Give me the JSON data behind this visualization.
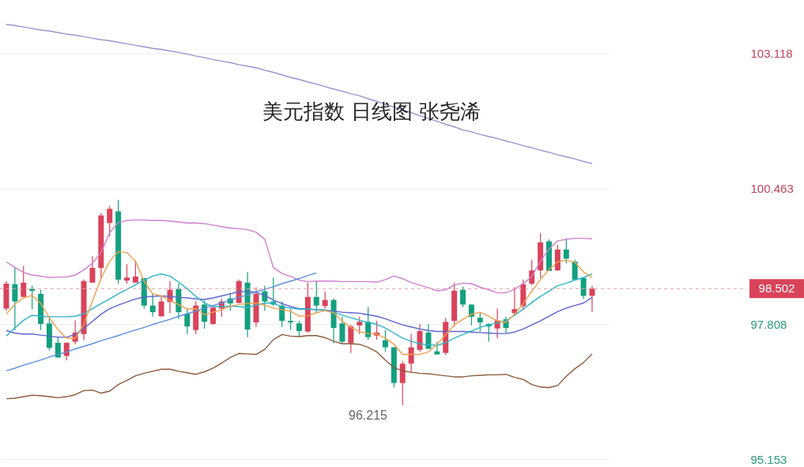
{
  "chart_data": {
    "type": "candlestick",
    "title": "美元指数 日线图 张尧浠",
    "categories": [
      null,
      null,
      null,
      null,
      null,
      null,
      null,
      null,
      null,
      null,
      null,
      null,
      null,
      null,
      null,
      null,
      null,
      null,
      null,
      null,
      null,
      null,
      null,
      null,
      null,
      null,
      null,
      null,
      null,
      null,
      null,
      null,
      null,
      null,
      null,
      null,
      null,
      null,
      null,
      null,
      null,
      null,
      null,
      null,
      null,
      null,
      null,
      null,
      null,
      null,
      null,
      null,
      null,
      null,
      null,
      null,
      null,
      null,
      null,
      null,
      null,
      null,
      null,
      null,
      null,
      null,
      null,
      null,
      null
    ],
    "ohlc": [
      [
        98.11,
        98.65,
        98.07,
        98.6
      ],
      [
        98.59,
        98.91,
        97.69,
        98.25
      ],
      [
        98.34,
        98.95,
        98.34,
        98.62
      ],
      [
        98.5,
        98.56,
        98.1,
        98.46
      ],
      [
        98.4,
        98.48,
        97.69,
        97.81
      ],
      [
        97.82,
        97.96,
        97.29,
        97.34
      ],
      [
        97.44,
        97.56,
        97.15,
        97.15
      ],
      [
        97.18,
        97.44,
        97.09,
        97.44
      ],
      [
        97.46,
        97.88,
        97.41,
        97.64
      ],
      [
        97.61,
        98.68,
        97.49,
        98.65
      ],
      [
        98.62,
        99.14,
        98.62,
        98.91
      ],
      [
        98.91,
        99.99,
        98.71,
        99.94
      ],
      [
        99.79,
        100.13,
        99.53,
        100.07
      ],
      [
        100.02,
        100.25,
        98.6,
        98.68
      ],
      [
        98.66,
        98.98,
        98.6,
        98.72
      ],
      [
        98.62,
        99.06,
        98.62,
        98.74
      ],
      [
        98.71,
        98.71,
        98.11,
        98.17
      ],
      [
        98.17,
        98.4,
        97.95,
        98.04
      ],
      [
        97.96,
        98.34,
        97.95,
        98.25
      ],
      [
        98.24,
        98.65,
        98.02,
        98.48
      ],
      [
        98.5,
        98.6,
        97.9,
        98.04
      ],
      [
        98.01,
        98.11,
        97.61,
        97.76
      ],
      [
        97.69,
        98.25,
        97.61,
        98.17
      ],
      [
        98.19,
        98.27,
        97.72,
        97.85
      ],
      [
        97.81,
        98.17,
        97.79,
        98.13
      ],
      [
        98.11,
        98.31,
        97.95,
        98.25
      ],
      [
        98.31,
        98.42,
        98.07,
        98.21
      ],
      [
        98.22,
        98.68,
        98.22,
        98.65
      ],
      [
        98.62,
        98.83,
        97.55,
        97.7
      ],
      [
        97.84,
        98.53,
        97.75,
        98.4
      ],
      [
        98.45,
        98.56,
        98.07,
        98.25
      ],
      [
        98.25,
        98.72,
        98.17,
        98.19
      ],
      [
        98.17,
        98.25,
        97.75,
        97.87
      ],
      [
        97.87,
        98.11,
        97.69,
        97.84
      ],
      [
        97.82,
        97.87,
        97.56,
        97.67
      ],
      [
        97.66,
        98.62,
        97.64,
        98.34
      ],
      [
        98.34,
        98.65,
        98.04,
        98.17
      ],
      [
        98.16,
        98.45,
        98.11,
        98.28
      ],
      [
        98.28,
        98.31,
        97.43,
        97.73
      ],
      [
        97.82,
        97.95,
        97.43,
        97.46
      ],
      [
        97.43,
        97.79,
        97.24,
        97.76
      ],
      [
        97.78,
        97.95,
        97.61,
        97.85
      ],
      [
        97.85,
        98.14,
        97.5,
        97.55
      ],
      [
        97.58,
        97.87,
        97.5,
        97.64
      ],
      [
        97.49,
        97.69,
        97.26,
        97.35
      ],
      [
        97.35,
        97.35,
        96.56,
        96.65
      ],
      [
        96.65,
        97.08,
        96.215,
        97.03
      ],
      [
        97.03,
        97.61,
        96.85,
        97.35
      ],
      [
        97.3,
        97.81,
        97.26,
        97.67
      ],
      [
        97.64,
        97.81,
        97.32,
        97.32
      ],
      [
        97.27,
        97.46,
        97.21,
        97.21
      ],
      [
        97.24,
        97.93,
        97.2,
        97.85
      ],
      [
        97.87,
        98.62,
        97.76,
        98.46
      ],
      [
        98.48,
        98.54,
        98.14,
        98.19
      ],
      [
        98.19,
        98.19,
        97.78,
        97.95
      ],
      [
        97.93,
        98.02,
        97.66,
        97.84
      ],
      [
        97.81,
        97.82,
        97.46,
        97.76
      ],
      [
        97.72,
        98.11,
        97.53,
        97.88
      ],
      [
        97.9,
        97.95,
        97.63,
        97.73
      ],
      [
        98.02,
        98.53,
        97.99,
        98.1
      ],
      [
        98.16,
        98.68,
        98.08,
        98.59
      ],
      [
        98.6,
        99.07,
        98.57,
        98.86
      ],
      [
        98.86,
        99.59,
        98.71,
        99.41
      ],
      [
        99.43,
        99.47,
        98.85,
        98.85
      ],
      [
        98.86,
        99.36,
        98.85,
        99.27
      ],
      [
        99.27,
        99.49,
        99.0,
        99.09
      ],
      [
        99.03,
        99.07,
        98.68,
        98.68
      ],
      [
        98.71,
        98.71,
        98.3,
        98.36
      ],
      [
        98.36,
        98.56,
        98.05,
        98.502
      ]
    ],
    "colors": [
      "#d9435a",
      "#13a07f",
      "#d9435a",
      "#13a07f",
      "#13a07f",
      "#13a07f",
      "#13a07f",
      "#d9435a",
      "#d9435a",
      "#d9435a",
      "#d9435a",
      "#d9435a",
      "#d9435a",
      "#13a07f",
      "#d9435a",
      "#d9435a",
      "#13a07f",
      "#13a07f",
      "#d9435a",
      "#d9435a",
      "#13a07f",
      "#13a07f",
      "#d9435a",
      "#13a07f",
      "#d9435a",
      "#d9435a",
      "#13a07f",
      "#d9435a",
      "#13a07f",
      "#d9435a",
      "#13a07f",
      "#13a07f",
      "#13a07f",
      "#13a07f",
      "#13a07f",
      "#d9435a",
      "#13a07f",
      "#d9435a",
      "#13a07f",
      "#13a07f",
      "#d9435a",
      "#d9435a",
      "#13a07f",
      "#d9435a",
      "#13a07f",
      "#13a07f",
      "#d9435a",
      "#d9435a",
      "#d9435a",
      "#13a07f",
      "#13a07f",
      "#d9435a",
      "#d9435a",
      "#13a07f",
      "#13a07f",
      "#13a07f",
      "#13a07f",
      "#d9435a",
      "#13a07f",
      "#d9435a",
      "#d9435a",
      "#d9435a",
      "#d9435a",
      "#13a07f",
      "#d9435a",
      "#13a07f",
      "#13a07f",
      "#13a07f",
      "#d9435a"
    ],
    "series": [
      {
        "type": "line",
        "color": "#9b93cf",
        "values": [
          103.69,
          103.67,
          103.64,
          103.61,
          103.58,
          103.56,
          103.53,
          103.5,
          103.48,
          103.45,
          103.42,
          103.39,
          103.37,
          103.34,
          103.31,
          103.28,
          103.25,
          103.22,
          103.2,
          103.17,
          103.14,
          103.11,
          103.07,
          103.04,
          103.0,
          102.97,
          102.94,
          102.9,
          102.87,
          102.84,
          102.79,
          102.75,
          102.7,
          102.65,
          102.61,
          102.56,
          102.52,
          102.47,
          102.42,
          102.38,
          102.33,
          102.29,
          102.23,
          102.18,
          102.12,
          102.07,
          102.01,
          101.96,
          101.9,
          101.84,
          101.79,
          101.73,
          101.68,
          101.62,
          101.58,
          101.53,
          101.49,
          101.45,
          101.4,
          101.36,
          101.31,
          101.27,
          101.22,
          101.18,
          101.13,
          101.09,
          101.05,
          101.0,
          100.96
        ]
      },
      {
        "type": "line",
        "color": "#cf7fcf",
        "values": [
          99.03,
          98.92,
          98.82,
          98.77,
          98.75,
          98.72,
          98.73,
          98.73,
          98.77,
          98.87,
          99.0,
          99.21,
          99.6,
          99.8,
          99.84,
          99.85,
          99.85,
          99.84,
          99.84,
          99.83,
          99.81,
          99.79,
          99.79,
          99.78,
          99.75,
          99.72,
          99.69,
          99.68,
          99.66,
          99.61,
          99.47,
          98.92,
          98.8,
          98.74,
          98.67,
          98.64,
          98.65,
          98.65,
          98.65,
          98.64,
          98.64,
          98.64,
          98.64,
          98.63,
          98.68,
          98.75,
          98.7,
          98.62,
          98.57,
          98.52,
          98.46,
          98.48,
          98.57,
          98.61,
          98.6,
          98.53,
          98.48,
          98.42,
          98.42,
          98.49,
          98.6,
          98.74,
          99.04,
          99.28,
          99.44,
          99.47,
          99.49,
          99.49,
          99.48
        ]
      },
      {
        "type": "line",
        "color": "#8c5a3a",
        "values": [
          96.34,
          96.35,
          96.38,
          96.41,
          96.4,
          96.38,
          96.36,
          96.38,
          96.42,
          96.5,
          96.51,
          96.45,
          96.49,
          96.62,
          96.7,
          96.79,
          96.84,
          96.88,
          96.92,
          96.92,
          96.88,
          96.85,
          96.82,
          96.87,
          96.94,
          97.04,
          97.15,
          97.23,
          97.22,
          97.21,
          97.31,
          97.5,
          97.6,
          97.57,
          97.56,
          97.58,
          97.58,
          97.54,
          97.47,
          97.42,
          97.42,
          97.41,
          97.35,
          97.26,
          97.1,
          96.95,
          96.89,
          96.86,
          96.84,
          96.83,
          96.81,
          96.79,
          96.77,
          96.77,
          96.79,
          96.8,
          96.81,
          96.81,
          96.82,
          96.76,
          96.72,
          96.62,
          96.57,
          96.56,
          96.6,
          96.78,
          96.93,
          97.05,
          97.22
        ]
      },
      {
        "type": "line",
        "color": "#5b63d0",
        "values": [
          97.68,
          97.63,
          97.61,
          97.61,
          97.59,
          97.57,
          97.55,
          97.55,
          97.6,
          97.72,
          97.86,
          98.0,
          98.11,
          98.18,
          98.24,
          98.3,
          98.34,
          98.35,
          98.36,
          98.35,
          98.33,
          98.32,
          98.3,
          98.29,
          98.32,
          98.36,
          98.4,
          98.44,
          98.45,
          98.43,
          98.37,
          98.28,
          98.21,
          98.15,
          98.11,
          98.1,
          98.09,
          98.08,
          98.06,
          98.04,
          98.03,
          98.02,
          97.99,
          97.96,
          97.91,
          97.85,
          97.79,
          97.75,
          97.71,
          97.68,
          97.66,
          97.66,
          97.66,
          97.66,
          97.65,
          97.64,
          97.63,
          97.62,
          97.62,
          97.65,
          97.71,
          97.79,
          97.87,
          97.96,
          98.05,
          98.12,
          98.17,
          98.22,
          98.33
        ]
      },
      {
        "type": "line",
        "color": "#2bb5c8",
        "values": [
          97.57,
          97.73,
          97.88,
          97.98,
          97.96,
          97.95,
          97.95,
          97.95,
          97.96,
          98.01,
          98.11,
          98.21,
          98.3,
          98.4,
          98.49,
          98.58,
          98.67,
          98.75,
          98.79,
          98.75,
          98.63,
          98.5,
          98.35,
          98.22,
          98.15,
          98.15,
          98.16,
          98.15,
          98.13,
          98.18,
          98.22,
          98.22,
          98.14,
          98.12,
          98.1,
          98.1,
          98.09,
          98.08,
          98.04,
          97.98,
          97.93,
          97.88,
          97.84,
          97.8,
          97.73,
          97.63,
          97.53,
          97.47,
          97.42,
          97.4,
          97.39,
          97.44,
          97.53,
          97.6,
          97.67,
          97.74,
          97.79,
          97.83,
          97.87,
          97.98,
          98.1,
          98.23,
          98.35,
          98.45,
          98.56,
          98.61,
          98.67,
          98.72,
          98.79
        ]
      },
      {
        "type": "line",
        "color": "#f0a04b",
        "values": [
          98.0,
          98.2,
          98.32,
          98.37,
          98.21,
          97.93,
          97.7,
          97.53,
          97.53,
          97.8,
          98.26,
          98.7,
          99.04,
          99.23,
          99.21,
          99.04,
          98.65,
          98.4,
          98.36,
          98.27,
          98.19,
          98.1,
          98.11,
          97.99,
          98.04,
          98.09,
          98.16,
          98.19,
          98.21,
          98.22,
          98.18,
          98.12,
          98.09,
          98.06,
          97.96,
          97.97,
          98.03,
          98.07,
          98.03,
          97.86,
          97.74,
          97.66,
          97.62,
          97.61,
          97.53,
          97.41,
          97.21,
          97.21,
          97.21,
          97.26,
          97.41,
          97.6,
          97.79,
          97.9,
          98.0,
          98.04,
          97.96,
          97.87,
          97.84,
          98.0,
          98.21,
          98.45,
          98.68,
          98.88,
          99.03,
          99.06,
          99.02,
          98.83,
          98.72
        ]
      },
      {
        "type": "line",
        "color": "#5b8fe0",
        "values": [
          96.89,
          96.94,
          97.0,
          97.05,
          97.1,
          97.16,
          97.21,
          97.26,
          97.32,
          97.37,
          97.42,
          97.48,
          97.53,
          97.58,
          97.64,
          97.69,
          97.74,
          97.8,
          97.85,
          97.9,
          97.96,
          98.01,
          98.06,
          98.12,
          98.17,
          98.22,
          98.28,
          98.33,
          98.38,
          98.44,
          98.49,
          98.54,
          98.6,
          98.65,
          98.7,
          98.76,
          98.81,
          null,
          null,
          null,
          null,
          null,
          null,
          null,
          null,
          null,
          null,
          null,
          null,
          null,
          null,
          null,
          null,
          null,
          null,
          null,
          null,
          null,
          null,
          null,
          null,
          null,
          null,
          null,
          null,
          null,
          null,
          null,
          null
        ]
      }
    ],
    "annotations": [
      "96.215"
    ],
    "ref_lines": [
      {
        "axis": "y",
        "value": 98.502,
        "label": "98.502",
        "color": "#e8a0a8",
        "line_style": "dashed"
      }
    ],
    "ylim": [
      95.0,
      104.17
    ],
    "yticks": [
      103.118,
      100.463,
      97.808,
      95.153
    ],
    "grid": "y",
    "tick_labels": "y"
  }
}
